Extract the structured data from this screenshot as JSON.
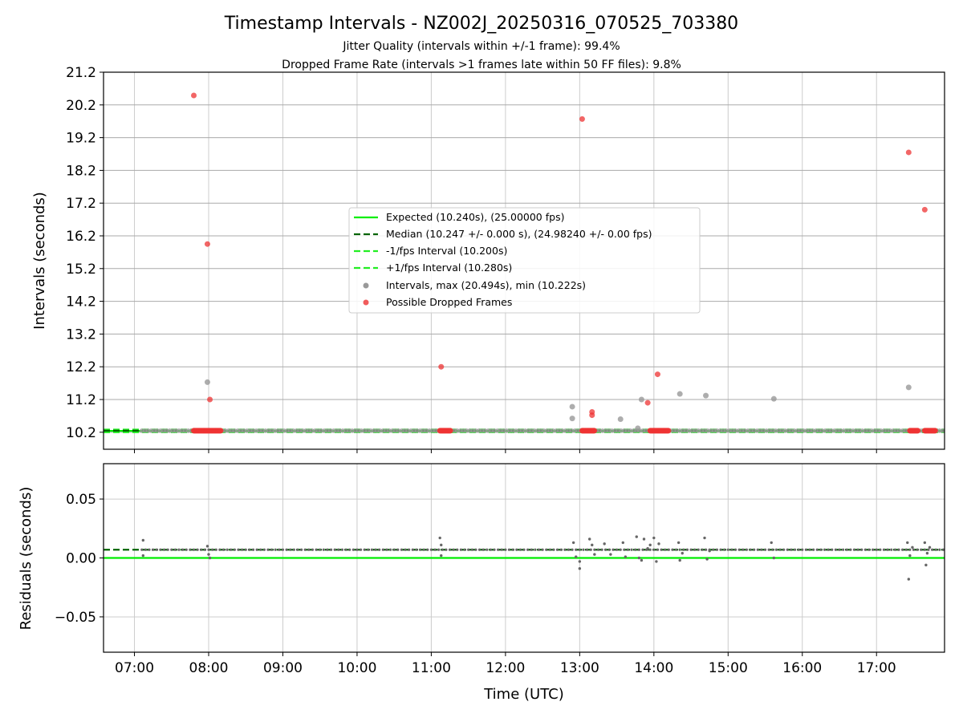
{
  "chart_data": {
    "type": "scatter",
    "title": "Timestamp Intervals - NZ002J_20250316_070525_703380",
    "subtitle_lines": [
      "Jitter Quality (intervals within +/-1 frame): 99.4%",
      "Dropped Frame Rate (intervals >1 frames late within 50 FF files): 9.8%"
    ],
    "xlabel": "Time (UTC)",
    "x_ticks": [
      "07:00",
      "08:00",
      "09:00",
      "10:00",
      "11:00",
      "12:00",
      "13:00",
      "14:00",
      "15:00",
      "16:00",
      "17:00"
    ],
    "x_range": [
      "06:35",
      "17:55"
    ],
    "grid": true,
    "colors": {
      "expected": "#00ee00",
      "median": "#006400",
      "fps_interval": "#22ee22",
      "intervals": "#999999",
      "dropped": "#ee3333",
      "residuals": "#666666"
    },
    "top_panel": {
      "ylabel": "Intervals (seconds)",
      "y_ticks": [
        "10.2",
        "11.2",
        "12.2",
        "13.2",
        "14.2",
        "15.2",
        "16.2",
        "17.2",
        "18.2",
        "19.2",
        "20.2",
        "21.2"
      ],
      "ylim": [
        9.68,
        21.2
      ],
      "legend_position": "center",
      "legend": [
        {
          "label": "Expected (10.240s), (25.00000 fps)",
          "style": "solid",
          "color": "#00ee00"
        },
        {
          "label": "Median (10.247 +/- 0.000 s), (24.98240 +/- 0.00 fps)",
          "style": "dashed",
          "color": "#006400"
        },
        {
          "label": "-1/fps Interval (10.200s)",
          "style": "dashed",
          "color": "#22ee22"
        },
        {
          "label": "+1/fps Interval (10.280s)",
          "style": "dashed",
          "color": "#22ee22"
        },
        {
          "label": "Intervals, max (20.494s), min (10.222s)",
          "style": "marker",
          "color": "#999999"
        },
        {
          "label": "Possible Dropped Frames",
          "style": "marker",
          "color": "#ee3333"
        }
      ],
      "expected": 10.24,
      "median": 10.247,
      "minus_1fps": 10.2,
      "plus_1fps": 10.28,
      "baseline_span": [
        "07:06",
        "17:55"
      ],
      "dropped_baseline_clusters": [
        [
          "07:48",
          "08:10"
        ],
        [
          "11:07",
          "11:16"
        ],
        [
          "13:02",
          "13:12"
        ],
        [
          "13:57",
          "14:12"
        ],
        [
          "17:27",
          "17:34"
        ],
        [
          "17:39",
          "17:48"
        ]
      ],
      "interval_outliers": [
        {
          "t": "07:59",
          "y": 11.73
        },
        {
          "t": "12:54",
          "y": 10.98
        },
        {
          "t": "12:54",
          "y": 10.62
        },
        {
          "t": "13:33",
          "y": 10.6
        },
        {
          "t": "13:47",
          "y": 10.32
        },
        {
          "t": "13:50",
          "y": 11.2
        },
        {
          "t": "14:21",
          "y": 11.37
        },
        {
          "t": "14:42",
          "y": 11.32
        },
        {
          "t": "15:37",
          "y": 11.22
        },
        {
          "t": "17:26",
          "y": 11.57
        }
      ],
      "dropped_outliers": [
        {
          "t": "07:48",
          "y": 20.49
        },
        {
          "t": "07:59",
          "y": 15.95
        },
        {
          "t": "08:01",
          "y": 11.2
        },
        {
          "t": "11:08",
          "y": 12.2
        },
        {
          "t": "13:02",
          "y": 19.77
        },
        {
          "t": "13:10",
          "y": 10.82
        },
        {
          "t": "13:10",
          "y": 10.72
        },
        {
          "t": "13:55",
          "y": 11.1
        },
        {
          "t": "14:03",
          "y": 11.97
        },
        {
          "t": "17:26",
          "y": 18.75
        },
        {
          "t": "17:39",
          "y": 17.0
        }
      ]
    },
    "bottom_panel": {
      "ylabel": "Residuals (seconds)",
      "y_ticks": [
        "−0.05",
        "0.00",
        "0.05"
      ],
      "ylim": [
        -0.08,
        0.08
      ],
      "expected": 0.0,
      "median": 0.007,
      "residual_baseline_span": [
        "07:06",
        "17:55"
      ],
      "residual_baseline": 0.007,
      "residual_outliers": [
        {
          "t": "07:07",
          "y": 0.015
        },
        {
          "t": "07:07",
          "y": 0.002
        },
        {
          "t": "07:59",
          "y": 0.01
        },
        {
          "t": "08:00",
          "y": 0.003
        },
        {
          "t": "08:01",
          "y": 0.0
        },
        {
          "t": "11:07",
          "y": 0.017
        },
        {
          "t": "11:08",
          "y": 0.011
        },
        {
          "t": "11:08",
          "y": 0.002
        },
        {
          "t": "12:55",
          "y": 0.013
        },
        {
          "t": "12:57",
          "y": 0.001
        },
        {
          "t": "13:00",
          "y": -0.009
        },
        {
          "t": "13:00",
          "y": -0.003
        },
        {
          "t": "13:08",
          "y": 0.016
        },
        {
          "t": "13:10",
          "y": 0.011
        },
        {
          "t": "13:12",
          "y": 0.003
        },
        {
          "t": "13:20",
          "y": 0.012
        },
        {
          "t": "13:25",
          "y": 0.003
        },
        {
          "t": "13:35",
          "y": 0.013
        },
        {
          "t": "13:37",
          "y": 0.001
        },
        {
          "t": "13:46",
          "y": 0.018
        },
        {
          "t": "13:48",
          "y": 0.0
        },
        {
          "t": "13:50",
          "y": -0.002
        },
        {
          "t": "13:52",
          "y": 0.016
        },
        {
          "t": "13:55",
          "y": 0.008
        },
        {
          "t": "13:57",
          "y": 0.011
        },
        {
          "t": "14:00",
          "y": 0.017
        },
        {
          "t": "14:02",
          "y": -0.003
        },
        {
          "t": "14:04",
          "y": 0.012
        },
        {
          "t": "14:20",
          "y": 0.013
        },
        {
          "t": "14:21",
          "y": -0.002
        },
        {
          "t": "14:23",
          "y": 0.004
        },
        {
          "t": "14:41",
          "y": 0.017
        },
        {
          "t": "14:43",
          "y": -0.001
        },
        {
          "t": "14:45",
          "y": 0.006
        },
        {
          "t": "15:35",
          "y": 0.013
        },
        {
          "t": "15:37",
          "y": 0.0
        },
        {
          "t": "17:25",
          "y": 0.013
        },
        {
          "t": "17:26",
          "y": -0.018
        },
        {
          "t": "17:27",
          "y": 0.002
        },
        {
          "t": "17:29",
          "y": 0.009
        },
        {
          "t": "17:39",
          "y": 0.013
        },
        {
          "t": "17:40",
          "y": -0.006
        },
        {
          "t": "17:41",
          "y": 0.004
        },
        {
          "t": "17:43",
          "y": 0.009
        }
      ]
    }
  }
}
